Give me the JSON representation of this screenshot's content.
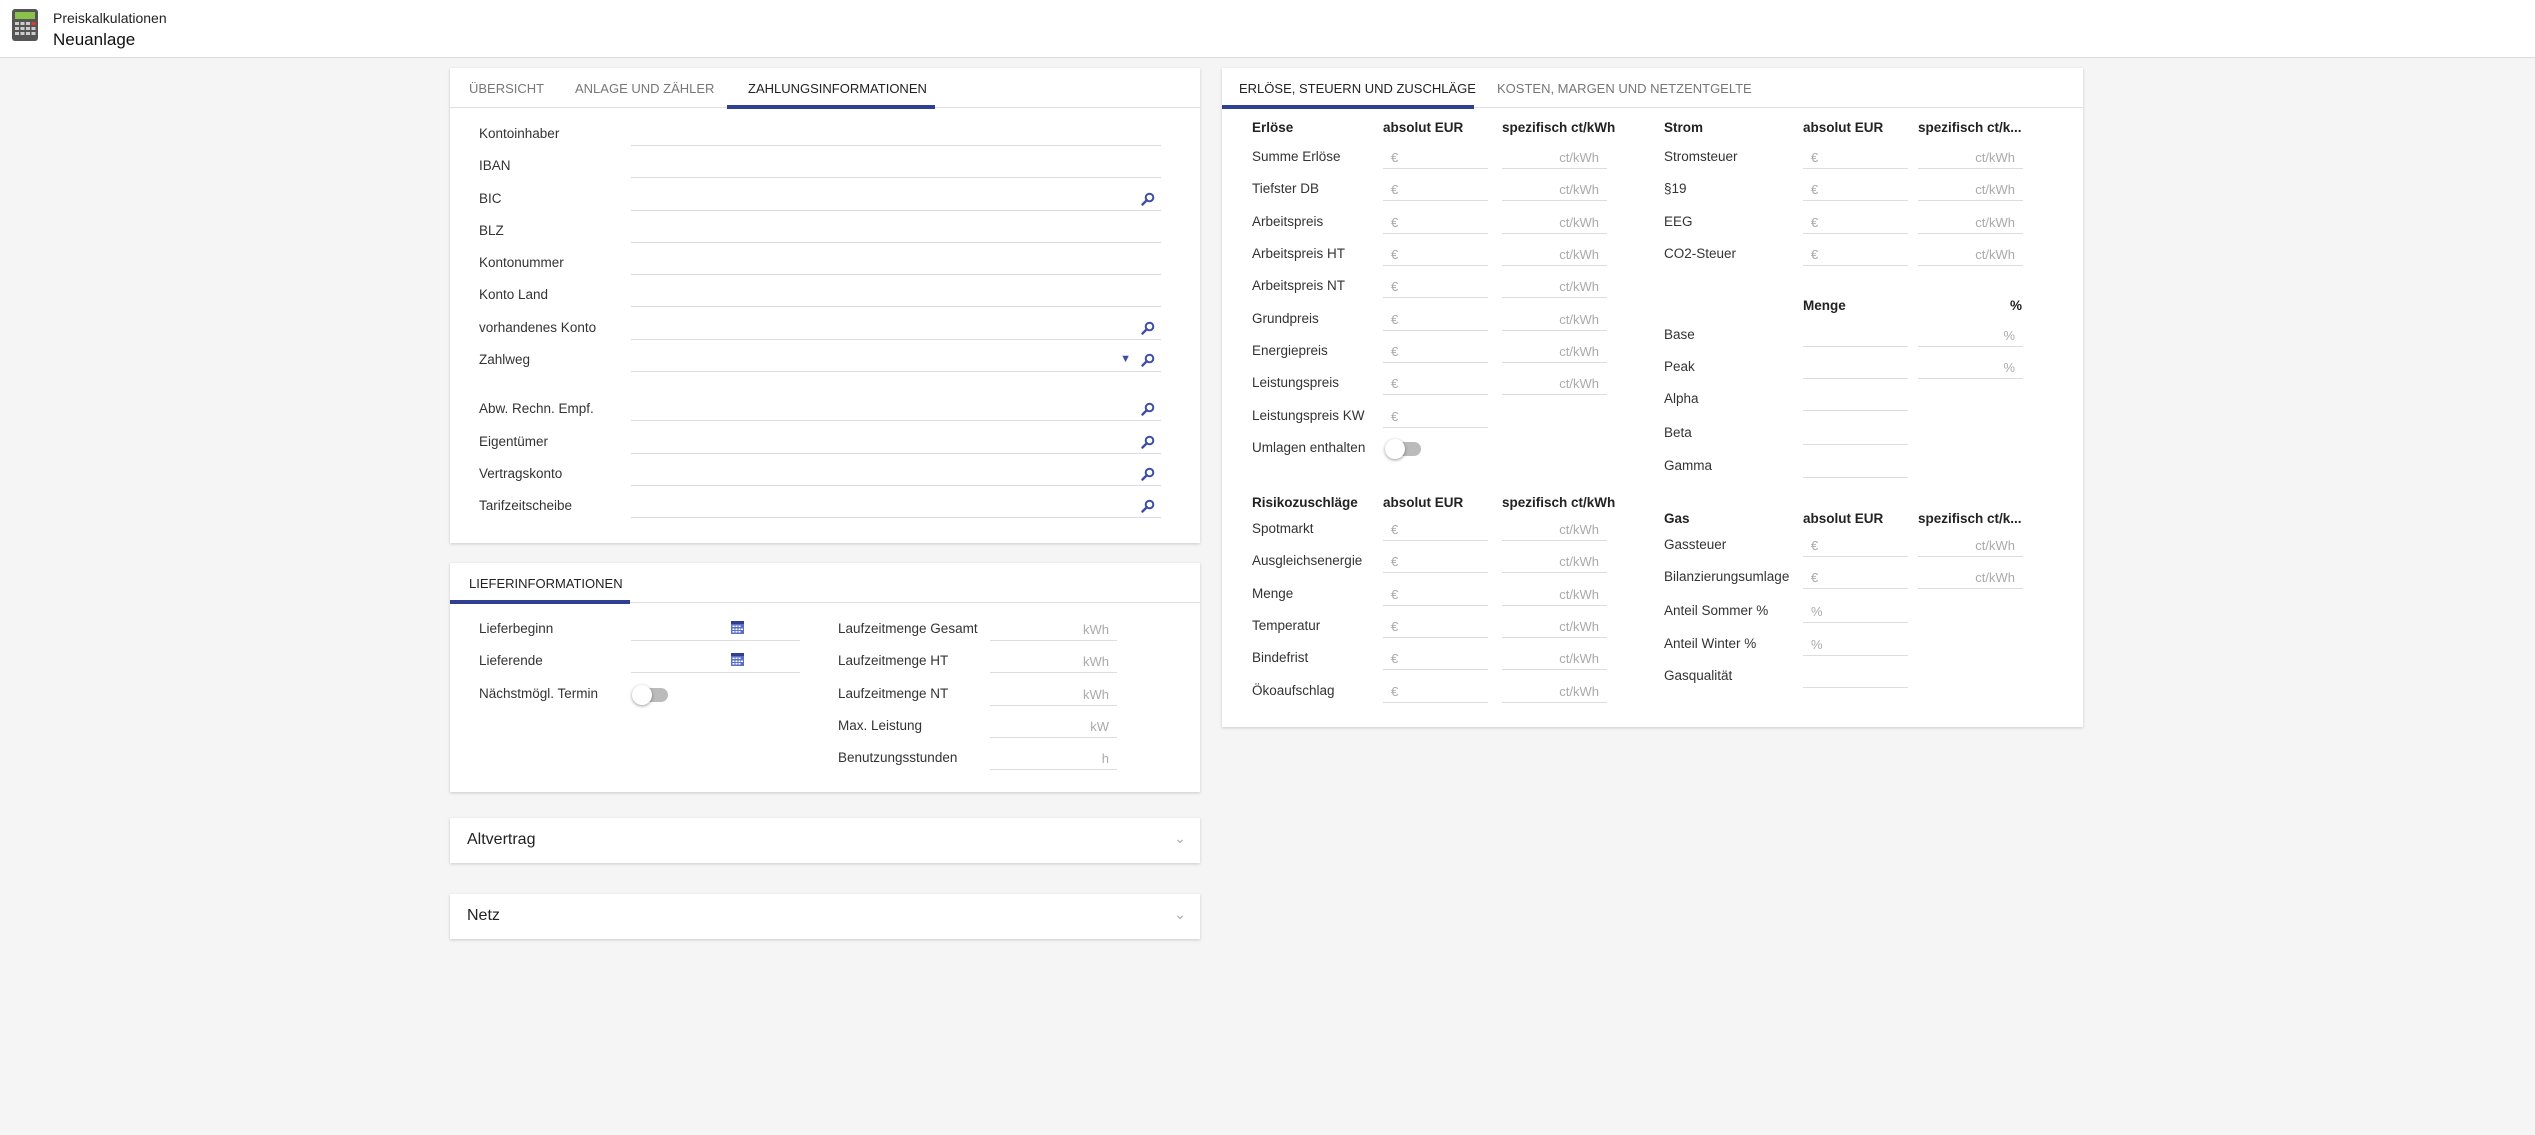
{
  "header": {
    "app": "Preiskalkulationen",
    "title": "Neuanlage",
    "icon": "calculator-icon"
  },
  "colors": {
    "accent": "#2f3f91"
  },
  "payment": {
    "tabs": [
      "ÜBERSICHT",
      "ANLAGE UND ZÄHLER",
      "ZAHLUNGSINFORMATIONEN"
    ],
    "active_tab": 2,
    "fields": [
      {
        "label": "Kontoinhaber"
      },
      {
        "label": "IBAN"
      },
      {
        "label": "BIC",
        "search": true
      },
      {
        "label": "BLZ"
      },
      {
        "label": "Kontonummer"
      },
      {
        "label": "Konto Land"
      },
      {
        "label": "vorhandenes Konto",
        "search": true
      },
      {
        "label": "Zahlweg",
        "search": true,
        "dropdown": true
      },
      {
        "label": "Abw. Rechn. Empf.",
        "search": true
      },
      {
        "label": "Eigentümer",
        "search": true
      },
      {
        "label": "Vertragskonto",
        "search": true
      },
      {
        "label": "Tarifzeitscheibe",
        "search": true
      }
    ]
  },
  "delivery": {
    "tab": "LIEFERINFORMATIONEN",
    "left": [
      {
        "label": "Lieferbeginn",
        "type": "date"
      },
      {
        "label": "Lieferende",
        "type": "date"
      },
      {
        "label": "Nächstmögl. Termin",
        "type": "toggle",
        "value": false
      }
    ],
    "right": [
      {
        "label": "Laufzeitmenge Gesamt",
        "unit": "kWh"
      },
      {
        "label": "Laufzeitmenge HT",
        "unit": "kWh"
      },
      {
        "label": "Laufzeitmenge NT",
        "unit": "kWh"
      },
      {
        "label": "Max. Leistung",
        "unit": "kW"
      },
      {
        "label": "Benutzungsstunden",
        "unit": "h"
      }
    ]
  },
  "accordions": [
    {
      "title": "Altvertrag"
    },
    {
      "title": "Netz"
    }
  ],
  "prices": {
    "tabs": [
      "ERLÖSE, STEUERN UND ZUSCHLÄGE",
      "KOSTEN, MARGEN UND NETZENTGELTE"
    ],
    "active_tab": 0,
    "erloese": {
      "headers": [
        "Erlöse",
        "absolut EUR",
        "spezifisch ct/kWh"
      ],
      "rows": [
        {
          "label": "Summe Erlöse",
          "a": "€",
          "b": "ct/kWh"
        },
        {
          "label": "Tiefster DB",
          "a": "€",
          "b": "ct/kWh"
        },
        {
          "label": "Arbeitspreis",
          "a": "€",
          "b": "ct/kWh"
        },
        {
          "label": "Arbeitspreis HT",
          "a": "€",
          "b": "ct/kWh"
        },
        {
          "label": "Arbeitspreis NT",
          "a": "€",
          "b": "ct/kWh"
        },
        {
          "label": "Grundpreis",
          "a": "€",
          "b": "ct/kWh"
        },
        {
          "label": "Energiepreis",
          "a": "€",
          "b": "ct/kWh"
        },
        {
          "label": "Leistungspreis",
          "a": "€",
          "b": "ct/kWh"
        },
        {
          "label": "Leistungspreis KW",
          "a": "€"
        },
        {
          "label": "Umlagen enthalten",
          "toggle": false
        }
      ]
    },
    "risiko": {
      "headers": [
        "Risikozuschläge",
        "absolut EUR",
        "spezifisch ct/kWh"
      ],
      "rows": [
        {
          "label": "Spotmarkt",
          "a": "€",
          "b": "ct/kWh"
        },
        {
          "label": "Ausgleichsenergie",
          "a": "€",
          "b": "ct/kWh"
        },
        {
          "label": "Menge",
          "a": "€",
          "b": "ct/kWh"
        },
        {
          "label": "Temperatur",
          "a": "€",
          "b": "ct/kWh"
        },
        {
          "label": "Bindefrist",
          "a": "€",
          "b": "ct/kWh"
        },
        {
          "label": "Ökoaufschlag",
          "a": "€",
          "b": "ct/kWh"
        }
      ]
    },
    "strom": {
      "headers": [
        "Strom",
        "absolut EUR",
        "spezifisch ct/k..."
      ],
      "rows": [
        {
          "label": "Stromsteuer",
          "a": "€",
          "b": "ct/kWh"
        },
        {
          "label": "§19",
          "a": "€",
          "b": "ct/kWh"
        },
        {
          "label": "EEG",
          "a": "€",
          "b": "ct/kWh"
        },
        {
          "label": "CO2-Steuer",
          "a": "€",
          "b": "ct/kWh"
        }
      ]
    },
    "menge": {
      "headers": [
        "",
        "Menge",
        "%"
      ],
      "rows": [
        {
          "label": "Base",
          "a": "",
          "b": "%"
        },
        {
          "label": "Peak",
          "a": "",
          "b": "%"
        },
        {
          "label": "Alpha",
          "a": ""
        },
        {
          "label": "Beta",
          "a": ""
        },
        {
          "label": "Gamma",
          "a": ""
        }
      ]
    },
    "gas": {
      "headers": [
        "Gas",
        "absolut EUR",
        "spezifisch ct/k..."
      ],
      "rows": [
        {
          "label": "Gassteuer",
          "a": "€",
          "b": "ct/kWh"
        },
        {
          "label": "Bilanzierungsumlage",
          "a": "€",
          "b": "ct/kWh"
        },
        {
          "label": "Anteil Sommer %",
          "a": "%"
        },
        {
          "label": "Anteil Winter %",
          "a": "%"
        },
        {
          "label": "Gasqualität",
          "a": ""
        }
      ]
    }
  }
}
